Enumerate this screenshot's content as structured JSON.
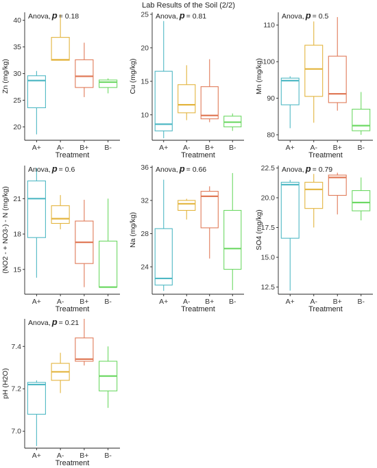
{
  "figure_title": "Lab Results of the Soil (2/2)",
  "chart_data": [
    {
      "type": "box",
      "ylabel": "Zn (mg/kg)",
      "xlabel": "Treatment",
      "anova_label": "Anova,",
      "p_label": "p",
      "p_value": "= 0.18",
      "categories": [
        "A+",
        "A-",
        "B+",
        "B-"
      ],
      "colors": [
        "#4fb8c4",
        "#e3b43d",
        "#e07a58",
        "#6cd863"
      ],
      "ylim": [
        17.5,
        41.5
      ],
      "yticks": [
        20,
        25,
        30,
        35,
        40
      ],
      "boxes": [
        {
          "min": 18.6,
          "q1": 23.6,
          "median": 28.7,
          "q3": 29.6,
          "max": 30.5
        },
        {
          "min": 32.5,
          "q1": 32.5,
          "median": 32.6,
          "q3": 36.8,
          "max": 41.1
        },
        {
          "min": 25.6,
          "q1": 27.4,
          "median": 29.5,
          "q3": 32.6,
          "max": 35.8
        },
        {
          "min": 26.3,
          "q1": 27.4,
          "median": 28.4,
          "q3": 28.8,
          "max": 29.1
        }
      ]
    },
    {
      "type": "box",
      "ylabel": "Cu (mg/kg)",
      "xlabel": "Treatment",
      "anova_label": "Anova,",
      "p_label": "p",
      "p_value": "= 0.81",
      "categories": [
        "A+",
        "A-",
        "B+",
        "B-"
      ],
      "colors": [
        "#4fb8c4",
        "#e3b43d",
        "#e07a58",
        "#6cd863"
      ],
      "ylim": [
        6.2,
        25.3
      ],
      "yticks": [
        10,
        15,
        20,
        25
      ],
      "boxes": [
        {
          "min": 6.5,
          "q1": 7.6,
          "median": 8.6,
          "q3": 16.5,
          "max": 24.0
        },
        {
          "min": 9.2,
          "q1": 10.3,
          "median": 11.5,
          "q3": 14.5,
          "max": 17.4
        },
        {
          "min": 8.9,
          "q1": 9.4,
          "median": 9.9,
          "q3": 14.2,
          "max": 18.3
        },
        {
          "min": 7.6,
          "q1": 8.2,
          "median": 8.9,
          "q3": 9.8,
          "max": 10.2
        }
      ]
    },
    {
      "type": "box",
      "ylabel": "Mn (mg/kg)",
      "xlabel": "Treatment",
      "anova_label": "Anova,",
      "p_label": "p",
      "p_value": "= 0.5",
      "categories": [
        "A+",
        "A-",
        "B+",
        "B-"
      ],
      "colors": [
        "#4fb8c4",
        "#e3b43d",
        "#e07a58",
        "#6cd863"
      ],
      "ylim": [
        78.5,
        113.5
      ],
      "yticks": [
        80,
        90,
        100,
        110
      ],
      "boxes": [
        {
          "min": 81.8,
          "q1": 88.2,
          "median": 94.8,
          "q3": 95.5,
          "max": 96.0
        },
        {
          "min": 83.3,
          "q1": 90.5,
          "median": 98.0,
          "q3": 104.5,
          "max": 111.0
        },
        {
          "min": 86.6,
          "q1": 88.8,
          "median": 91.2,
          "q3": 101.5,
          "max": 112.2
        },
        {
          "min": 80.0,
          "q1": 81.1,
          "median": 82.5,
          "q3": 87.0,
          "max": 91.7
        }
      ]
    },
    {
      "type": "box",
      "ylabel": "(NO2 - + NO3-) - N (mg/kg)",
      "xlabel": "Treatment",
      "anova_label": "Anova,",
      "p_label": "p",
      "p_value": "= 0.6",
      "categories": [
        "A+",
        "A-",
        "B+",
        "B-"
      ],
      "colors": [
        "#4fb8c4",
        "#e3b43d",
        "#e07a58",
        "#6cd863"
      ],
      "ylim": [
        12.9,
        23.8
      ],
      "yticks": [
        15,
        18,
        21
      ],
      "boxes": [
        {
          "min": 14.3,
          "q1": 17.7,
          "median": 21.0,
          "q3": 22.5,
          "max": 23.6
        },
        {
          "min": 18.4,
          "q1": 18.9,
          "median": 19.3,
          "q3": 20.4,
          "max": 21.3
        },
        {
          "min": 13.5,
          "q1": 15.5,
          "median": 17.3,
          "q3": 19.1,
          "max": 20.9
        },
        {
          "min": 13.5,
          "q1": 13.5,
          "median": 13.5,
          "q3": 17.4,
          "max": 21.0
        }
      ]
    },
    {
      "type": "box",
      "ylabel": "Na (mg/kg)",
      "xlabel": "Treatment",
      "anova_label": "Anova,",
      "p_label": "p",
      "p_value": "= 0.66",
      "categories": [
        "A+",
        "A-",
        "B+",
        "B-"
      ],
      "colors": [
        "#4fb8c4",
        "#e3b43d",
        "#e07a58",
        "#6cd863"
      ],
      "ylim": [
        20.7,
        36.2
      ],
      "yticks": [
        24,
        28,
        32,
        36
      ],
      "boxes": [
        {
          "min": 21.1,
          "q1": 21.8,
          "median": 22.6,
          "q3": 28.6,
          "max": 34.5
        },
        {
          "min": 29.7,
          "q1": 30.8,
          "median": 31.6,
          "q3": 32.0,
          "max": 32.2
        },
        {
          "min": 25.0,
          "q1": 28.7,
          "median": 32.5,
          "q3": 33.1,
          "max": 33.7
        },
        {
          "min": 21.2,
          "q1": 23.7,
          "median": 26.2,
          "q3": 30.8,
          "max": 35.3
        }
      ]
    },
    {
      "type": "box",
      "ylabel": "SO4 (mg/kg)",
      "xlabel": "Treatment",
      "anova_label": "Anova,",
      "p_label": "p",
      "p_value": "= 0.79",
      "categories": [
        "A+",
        "A-",
        "B+",
        "B-"
      ],
      "colors": [
        "#4fb8c4",
        "#e3b43d",
        "#e07a58",
        "#6cd863"
      ],
      "ylim": [
        11.9,
        22.7
      ],
      "yticks": [
        12.5,
        15.0,
        17.5,
        20.0,
        22.5
      ],
      "boxes": [
        {
          "min": 12.2,
          "q1": 16.6,
          "median": 21.1,
          "q3": 21.3,
          "max": 21.5
        },
        {
          "min": 17.5,
          "q1": 19.1,
          "median": 20.7,
          "q3": 21.3,
          "max": 22.0
        },
        {
          "min": 18.6,
          "q1": 20.2,
          "median": 21.7,
          "q3": 21.9,
          "max": 22.1
        },
        {
          "min": 18.1,
          "q1": 18.9,
          "median": 19.6,
          "q3": 20.6,
          "max": 21.7
        }
      ]
    },
    {
      "type": "box",
      "ylabel": "pH (H2O)",
      "xlabel": "Treatment",
      "anova_label": "Anova,",
      "p_label": "p",
      "p_value": "= 0.21",
      "categories": [
        "A+",
        "A-",
        "B+",
        "B-"
      ],
      "colors": [
        "#4fb8c4",
        "#e3b43d",
        "#e07a58",
        "#6cd863"
      ],
      "ylim": [
        6.92,
        7.53
      ],
      "yticks": [
        7.0,
        7.2,
        7.4
      ],
      "boxes": [
        {
          "min": 6.93,
          "q1": 7.08,
          "median": 7.22,
          "q3": 7.23,
          "max": 7.24
        },
        {
          "min": 7.18,
          "q1": 7.24,
          "median": 7.28,
          "q3": 7.32,
          "max": 7.37
        },
        {
          "min": 7.31,
          "q1": 7.33,
          "median": 7.34,
          "q3": 7.44,
          "max": 7.53
        },
        {
          "min": 7.11,
          "q1": 7.19,
          "median": 7.26,
          "q3": 7.33,
          "max": 7.4
        }
      ]
    }
  ]
}
